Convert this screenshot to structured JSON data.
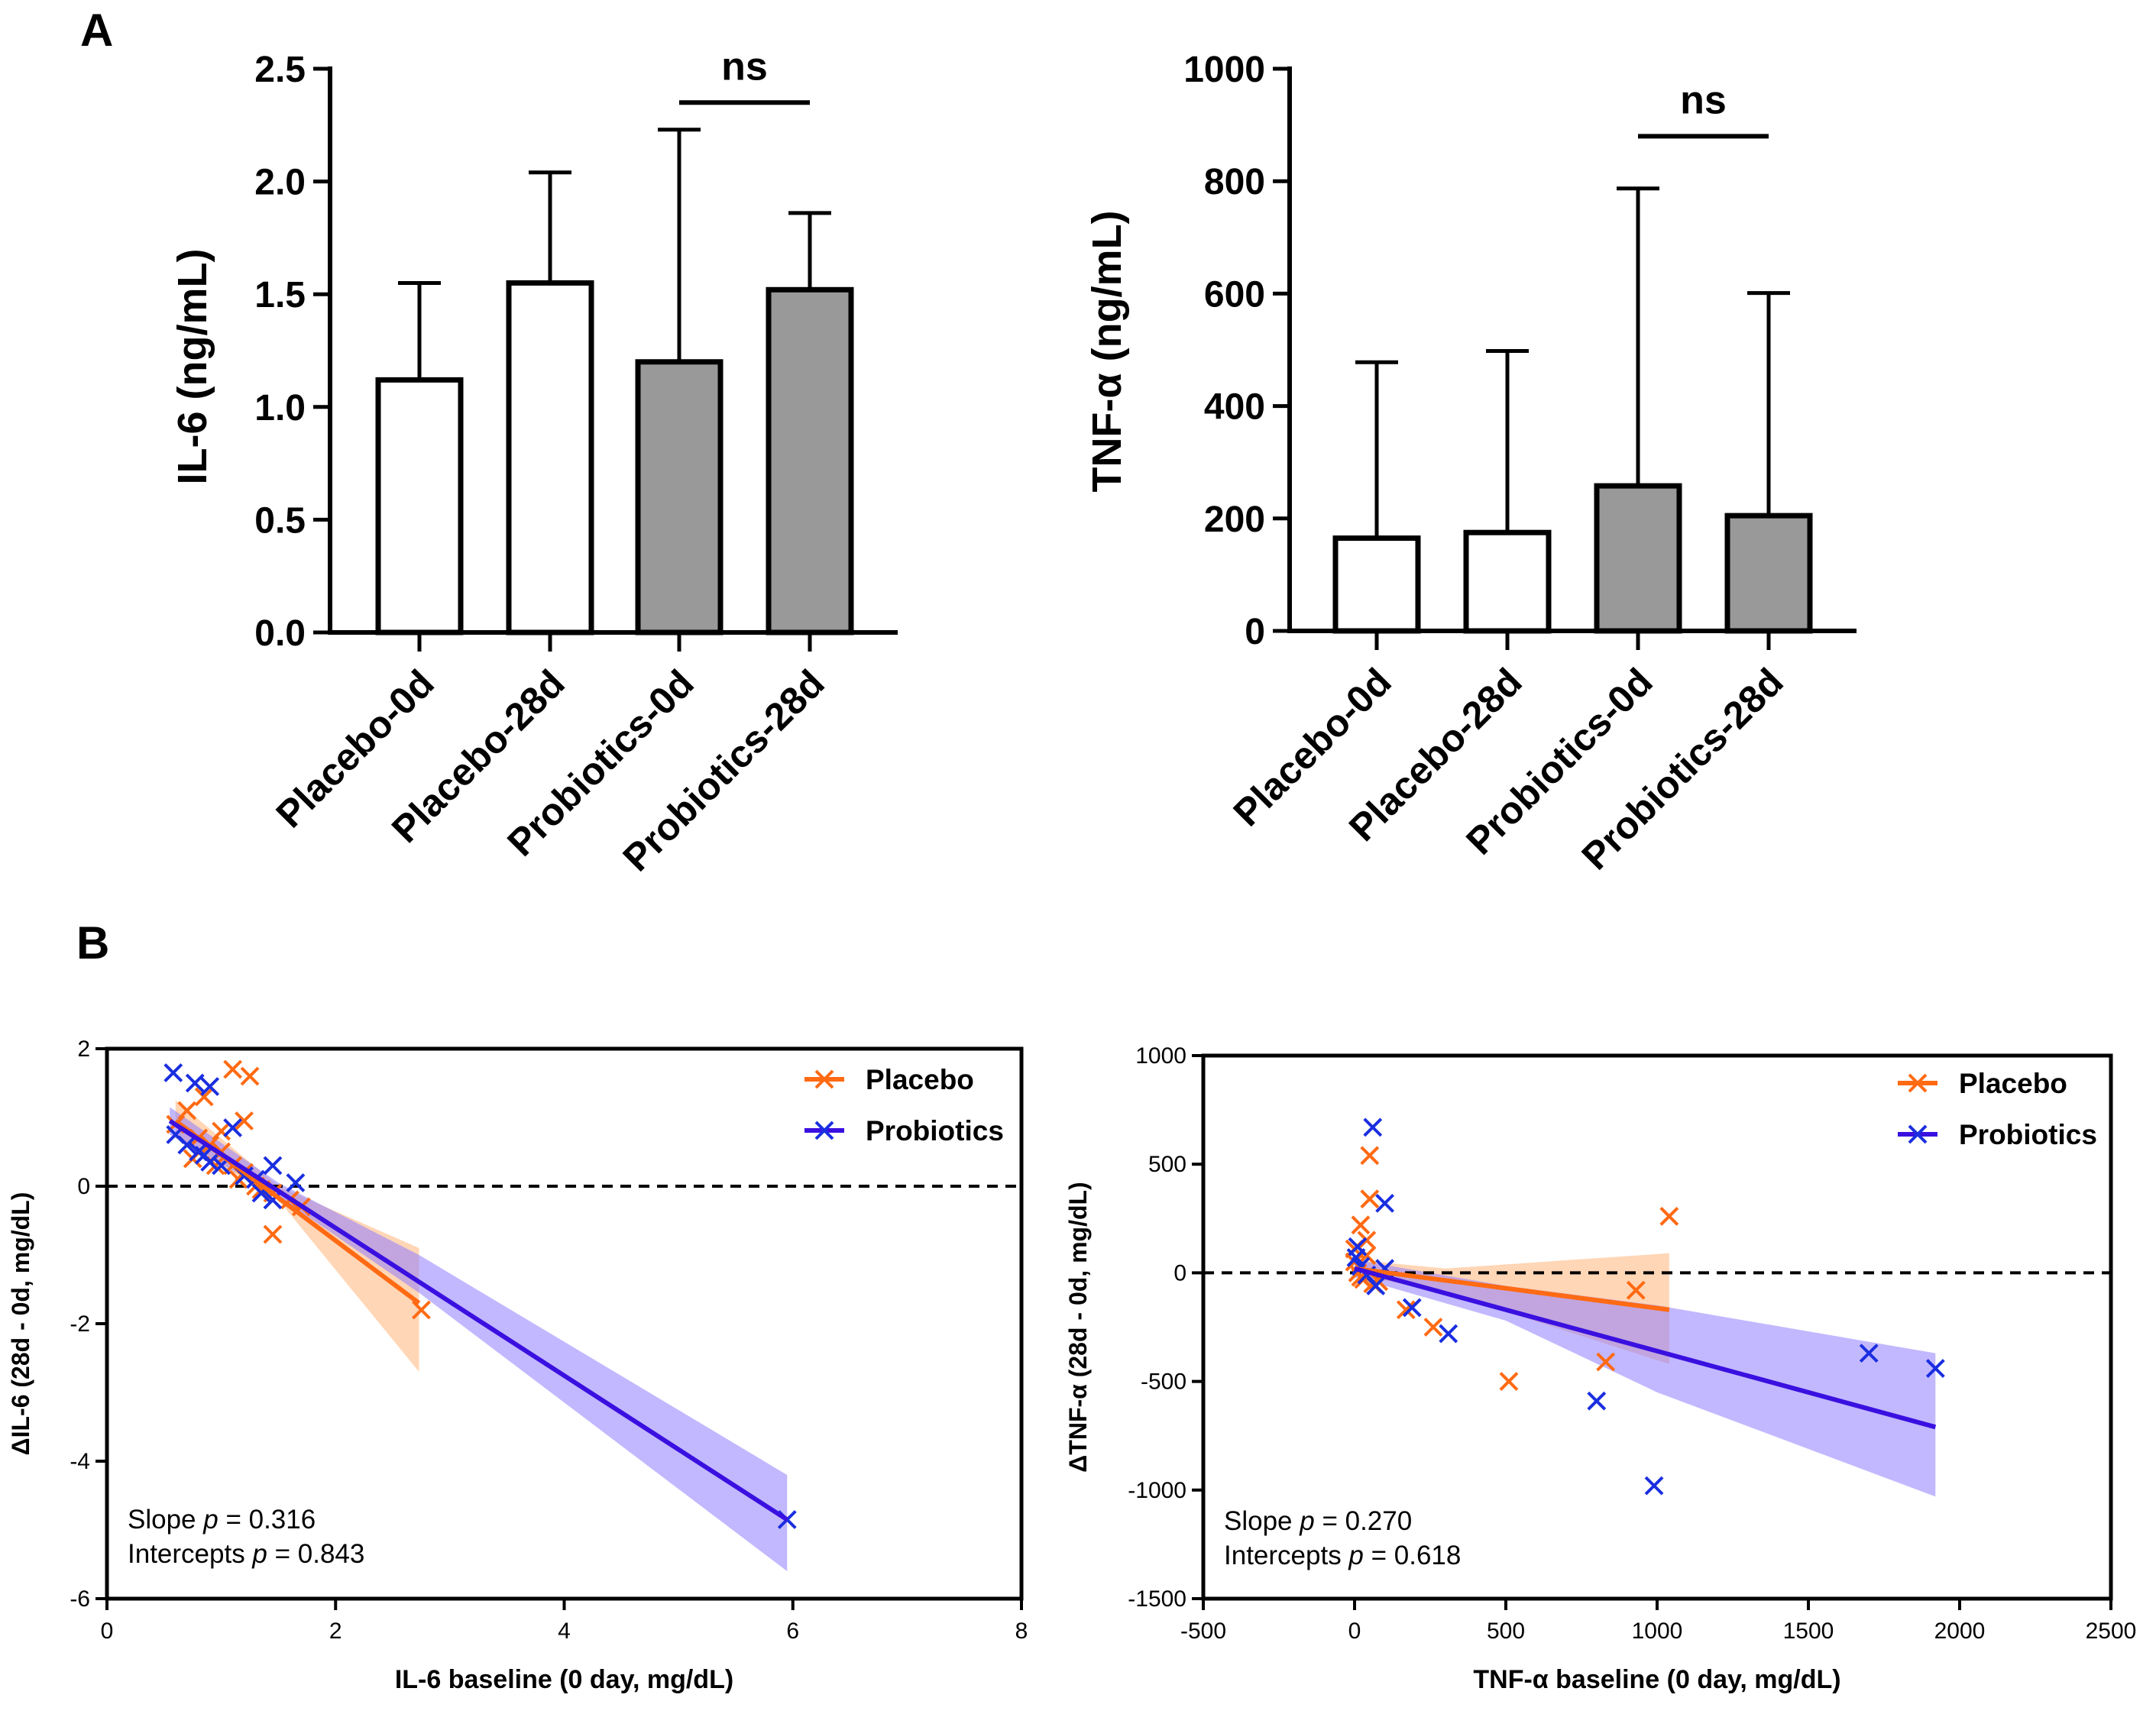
{
  "panel_labels": {
    "a": "A",
    "b": "B"
  },
  "chart_data": [
    {
      "type": "bar",
      "panel": "A",
      "ylabel": "IL-6 (ng/mL)",
      "categories": [
        "Placebo-0d",
        "Placebo-28d",
        "Probiotics-0d",
        "Probiotics-28d"
      ],
      "values": [
        1.12,
        1.55,
        1.2,
        1.52
      ],
      "error_upper": [
        1.55,
        2.04,
        2.23,
        1.86
      ],
      "bar_colors": [
        "#ffffff",
        "#ffffff",
        "#999999",
        "#999999"
      ],
      "ylim": [
        0,
        2.5
      ],
      "yticks": [
        "0.0",
        "0.5",
        "1.0",
        "1.5",
        "2.0",
        "2.5"
      ],
      "ytick_values": [
        0,
        0.5,
        1,
        1.5,
        2,
        2.5
      ],
      "annotation": {
        "text": "ns",
        "between": [
          2,
          3
        ],
        "y": 2.35
      }
    },
    {
      "type": "bar",
      "panel": "A",
      "ylabel": "TNF-α  (ng/mL)",
      "categories": [
        "Placebo-0d",
        "Placebo-28d",
        "Probiotics-0d",
        "Probiotics-28d"
      ],
      "values": [
        165,
        175,
        258,
        205
      ],
      "error_upper": [
        478,
        498,
        787,
        601
      ],
      "bar_colors": [
        "#ffffff",
        "#ffffff",
        "#999999",
        "#999999"
      ],
      "ylim": [
        0,
        1000
      ],
      "yticks": [
        "0",
        "200",
        "400",
        "600",
        "800",
        "1000"
      ],
      "ytick_values": [
        0,
        200,
        400,
        600,
        800,
        1000
      ],
      "annotation": {
        "text": "ns",
        "between": [
          2,
          3
        ],
        "y": 880
      }
    },
    {
      "type": "scatter",
      "panel": "B",
      "xlabel": "IL-6 baseline (0 day, mg/dL)",
      "ylabel": "ΔIL-6 (28d - 0d, mg/dL)",
      "xlim": [
        0,
        8
      ],
      "ylim": [
        -6,
        2
      ],
      "xticks": [
        "0",
        "2",
        "4",
        "6",
        "8"
      ],
      "xtick_values": [
        0,
        2,
        4,
        6,
        8
      ],
      "yticks": [
        "-6",
        "-4",
        "-2",
        "0",
        "2"
      ],
      "ytick_values": [
        -6,
        -4,
        -2,
        0,
        2
      ],
      "reference_line_y": 0,
      "legend": "top-right",
      "stats": {
        "slope_prefix": "Slope ",
        "p": "p",
        "slope_value": " = 0.316",
        "intercept_prefix": "Intercepts ",
        "intercept_value": " = 0.843"
      },
      "series": [
        {
          "name": "Placebo",
          "color": "#ff6a13",
          "band_color": "#ffb47a",
          "points": [
            [
              1.1,
              1.7
            ],
            [
              1.25,
              1.6
            ],
            [
              0.85,
              1.3
            ],
            [
              1.2,
              0.95
            ],
            [
              0.7,
              1.1
            ],
            [
              0.6,
              0.9
            ],
            [
              0.8,
              0.7
            ],
            [
              0.9,
              0.6
            ],
            [
              1.0,
              0.5
            ],
            [
              0.75,
              0.4
            ],
            [
              1.1,
              0.3
            ],
            [
              1.2,
              0.2
            ],
            [
              1.3,
              0.0
            ],
            [
              1.45,
              -0.1
            ],
            [
              1.6,
              -0.2
            ],
            [
              1.45,
              -0.7
            ],
            [
              2.75,
              -1.8
            ],
            [
              1.0,
              0.8
            ],
            [
              0.95,
              0.3
            ],
            [
              1.15,
              0.1
            ],
            [
              1.7,
              -0.3
            ],
            [
              1.35,
              -0.05
            ]
          ],
          "fit": [
            [
              0.6,
              0.95
            ],
            [
              2.73,
              -1.7
            ]
          ],
          "ci": {
            "x": [
              0.6,
              1.5,
              2.73
            ],
            "lower": [
              0.7,
              -0.2,
              -2.7
            ],
            "upper": [
              1.25,
              0.0,
              -0.9
            ]
          }
        },
        {
          "name": "Probiotics",
          "color": "#1a2ee0",
          "line_color": "#3a10e0",
          "band_color": "#8f7dff",
          "points": [
            [
              0.58,
              1.65
            ],
            [
              0.77,
              1.5
            ],
            [
              0.9,
              1.45
            ],
            [
              1.1,
              0.85
            ],
            [
              0.6,
              0.75
            ],
            [
              0.7,
              0.6
            ],
            [
              0.85,
              0.45
            ],
            [
              0.9,
              0.35
            ],
            [
              1.0,
              0.3
            ],
            [
              1.2,
              0.15
            ],
            [
              1.3,
              0.1
            ],
            [
              1.45,
              0.3
            ],
            [
              1.65,
              0.05
            ],
            [
              1.45,
              -0.2
            ],
            [
              1.35,
              -0.1
            ],
            [
              5.95,
              -4.85
            ],
            [
              0.8,
              0.5
            ]
          ],
          "fit": [
            [
              0.55,
              0.95
            ],
            [
              5.95,
              -4.85
            ]
          ],
          "ci": {
            "x": [
              0.55,
              1.5,
              2.73,
              5.95
            ],
            "lower": [
              0.75,
              -0.15,
              -1.55,
              -5.6
            ],
            "upper": [
              1.15,
              0.05,
              -1.0,
              -4.2
            ]
          }
        }
      ]
    },
    {
      "type": "scatter",
      "panel": "B",
      "xlabel": "TNF-α  baseline (0 day, mg/dL)",
      "ylabel": "ΔTNF-α  (28d - 0d, mg/dL)",
      "xlim": [
        -500,
        2500
      ],
      "ylim": [
        -1500,
        1000
      ],
      "xticks": [
        "-500",
        "0",
        "500",
        "1000",
        "1500",
        "2000",
        "2500"
      ],
      "xtick_values": [
        -500,
        0,
        500,
        1000,
        1500,
        2000,
        2500
      ],
      "yticks": [
        "-1500",
        "-1000",
        "-500",
        "0",
        "500",
        "1000"
      ],
      "ytick_values": [
        -1500,
        -1000,
        -500,
        0,
        500,
        1000
      ],
      "reference_line_y": 0,
      "legend": "top-right",
      "stats": {
        "slope_prefix": "Slope ",
        "p": "p",
        "slope_value": " = 0.270",
        "intercept_prefix": "Intercepts ",
        "intercept_value": " = 0.618"
      },
      "series": [
        {
          "name": "Placebo",
          "color": "#ff6a13",
          "band_color": "#ffb47a",
          "points": [
            [
              50,
              540
            ],
            [
              50,
              340
            ],
            [
              20,
              220
            ],
            [
              40,
              150
            ],
            [
              1040,
              260
            ],
            [
              930,
              -80
            ],
            [
              830,
              -410
            ],
            [
              510,
              -500
            ],
            [
              260,
              -250
            ],
            [
              170,
              -170
            ],
            [
              0,
              50
            ],
            [
              10,
              0
            ],
            [
              30,
              -30
            ],
            [
              60,
              -50
            ],
            [
              40,
              80
            ],
            [
              20,
              -20
            ],
            [
              80,
              -40
            ],
            [
              0,
              110
            ]
          ],
          "fit": [
            [
              0,
              20
            ],
            [
              1040,
              -170
            ]
          ],
          "ci": {
            "x": [
              0,
              300,
              1040
            ],
            "lower": [
              -10,
              -90,
              -420
            ],
            "upper": [
              60,
              20,
              90
            ]
          }
        },
        {
          "name": "Probiotics",
          "color": "#1a2ee0",
          "line_color": "#3a10e0",
          "band_color": "#8f7dff",
          "points": [
            [
              60,
              670
            ],
            [
              100,
              320
            ],
            [
              10,
              120
            ],
            [
              5,
              70
            ],
            [
              100,
              20
            ],
            [
              70,
              -60
            ],
            [
              190,
              -160
            ],
            [
              310,
              -280
            ],
            [
              800,
              -590
            ],
            [
              990,
              -980
            ],
            [
              1700,
              -370
            ],
            [
              1920,
              -440
            ],
            [
              20,
              30
            ],
            [
              40,
              -10
            ]
          ],
          "fit": [
            [
              0,
              20
            ],
            [
              1920,
              -710
            ]
          ],
          "ci": {
            "x": [
              0,
              500,
              1000,
              1920
            ],
            "lower": [
              -20,
              -220,
              -550,
              -1030
            ],
            "upper": [
              60,
              -60,
              -150,
              -370
            ]
          }
        }
      ]
    }
  ]
}
